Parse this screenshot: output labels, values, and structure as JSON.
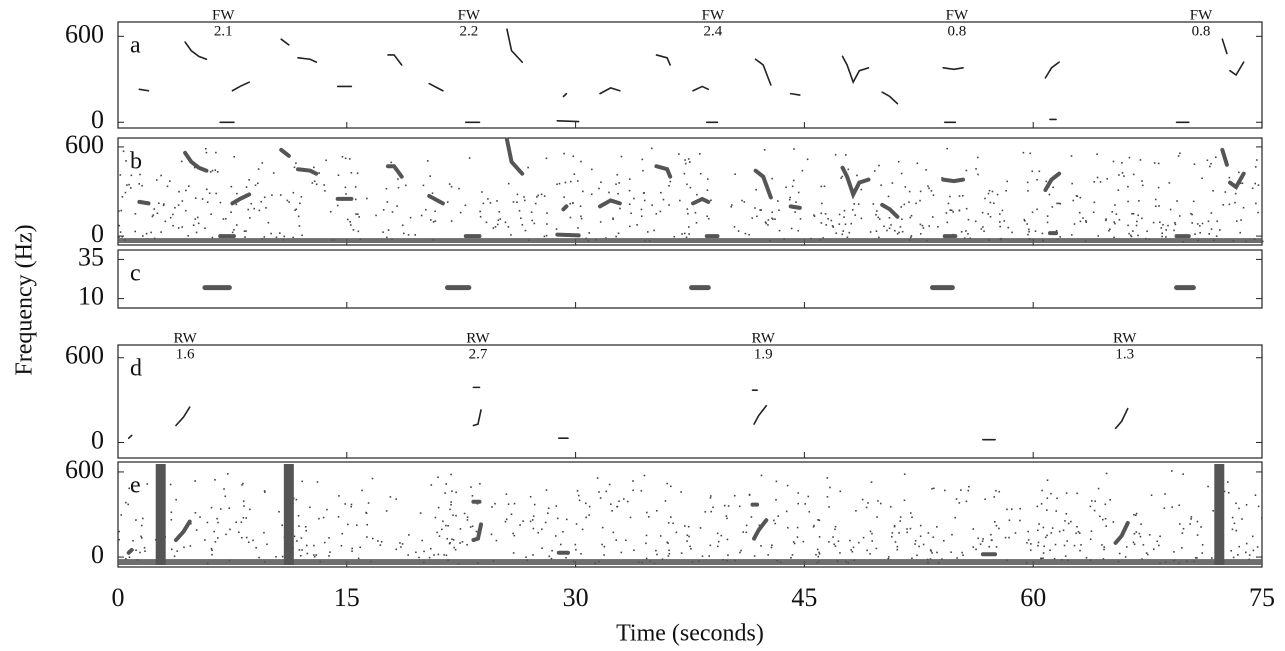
{
  "chart_data": [
    {
      "type": "line",
      "label": "a",
      "ylim": [
        -40,
        700
      ],
      "yticks": [
        0,
        600
      ],
      "color": "#222",
      "annotations": [
        {
          "x": 6.9,
          "text": "FW",
          "value": 2.1
        },
        {
          "x": 23,
          "text": "FW",
          "value": 2.2
        },
        {
          "x": 39,
          "text": "FW",
          "value": 2.4
        },
        {
          "x": 55,
          "text": "FW",
          "value": 0.8
        },
        {
          "x": 71,
          "text": "FW",
          "value": 0.8
        }
      ],
      "series": [
        {
          "x": [
            4.4,
            4.8,
            5.3,
            5.8
          ],
          "values": [
            560,
            500,
            460,
            440
          ]
        },
        {
          "x": [
            1.4,
            2.0
          ],
          "values": [
            230,
            220
          ]
        },
        {
          "x": [
            6.7,
            7.6
          ],
          "values": [
            0,
            0
          ]
        },
        {
          "x": [
            7.5,
            8.0,
            8.6
          ],
          "values": [
            220,
            250,
            280
          ]
        },
        {
          "x": [
            10.7,
            11.2
          ],
          "values": [
            580,
            540
          ]
        },
        {
          "x": [
            11.8,
            12.6,
            13.0
          ],
          "values": [
            450,
            440,
            420
          ]
        },
        {
          "x": [
            14.4,
            15.3
          ],
          "values": [
            250,
            250
          ]
        },
        {
          "x": [
            17.7,
            18.1,
            18.6
          ],
          "values": [
            470,
            470,
            400
          ]
        },
        {
          "x": [
            20.4,
            21.3
          ],
          "values": [
            270,
            220
          ]
        },
        {
          "x": [
            22.8,
            23.7
          ],
          "values": [
            0,
            0
          ]
        },
        {
          "x": [
            25.5,
            25.8,
            26.5
          ],
          "values": [
            650,
            500,
            420
          ]
        },
        {
          "x": [
            29.2,
            29.4
          ],
          "values": [
            180,
            200
          ]
        },
        {
          "x": [
            28.8,
            30.2
          ],
          "values": [
            10,
            5
          ]
        },
        {
          "x": [
            31.6,
            32.3,
            32.9
          ],
          "values": [
            200,
            240,
            220
          ]
        },
        {
          "x": [
            35.3,
            36.0,
            36.2
          ],
          "values": [
            470,
            450,
            400
          ]
        },
        {
          "x": [
            37.7,
            38.3,
            38.7
          ],
          "values": [
            220,
            250,
            230
          ]
        },
        {
          "x": [
            38.6,
            39.3
          ],
          "values": [
            0,
            0
          ]
        },
        {
          "x": [
            41.8,
            42.3,
            42.8
          ],
          "values": [
            440,
            400,
            260
          ]
        },
        {
          "x": [
            44.1,
            44.7
          ],
          "values": [
            200,
            190
          ]
        },
        {
          "x": [
            47.5,
            47.8,
            48.2,
            48.6,
            49.2
          ],
          "values": [
            460,
            400,
            280,
            360,
            380
          ]
        },
        {
          "x": [
            50.1,
            50.6,
            51.1
          ],
          "values": [
            210,
            180,
            130
          ]
        },
        {
          "x": [
            54.1,
            54.8,
            55.4
          ],
          "values": [
            380,
            370,
            380
          ]
        },
        {
          "x": [
            54.2,
            54.9
          ],
          "values": [
            0,
            0
          ]
        },
        {
          "x": [
            60.8,
            61.2,
            61.7
          ],
          "values": [
            310,
            380,
            420
          ]
        },
        {
          "x": [
            61.1,
            61.5
          ],
          "values": [
            20,
            20
          ]
        },
        {
          "x": [
            69.4,
            70.2
          ],
          "values": [
            0,
            0
          ]
        },
        {
          "x": [
            72.4,
            72.7
          ],
          "values": [
            580,
            480
          ]
        },
        {
          "x": [
            72.9,
            73.3,
            73.8
          ],
          "values": [
            360,
            330,
            420
          ]
        }
      ]
    },
    {
      "type": "spectrogram",
      "label": "b",
      "ylim": [
        -60,
        660
      ],
      "yticks": [
        0,
        600
      ],
      "color": "#555"
    },
    {
      "type": "line",
      "label": "c",
      "ylim": [
        4,
        41
      ],
      "yticks": [
        10,
        35
      ],
      "color": "#555",
      "ylabel": "Frequency (Hz)",
      "series": [
        {
          "x": [
            5.7,
            7.3
          ],
          "values": [
            17,
            17
          ]
        },
        {
          "x": [
            21.6,
            23.0
          ],
          "values": [
            17,
            17
          ]
        },
        {
          "x": [
            37.6,
            38.7
          ],
          "values": [
            17,
            17
          ]
        },
        {
          "x": [
            53.4,
            54.7
          ],
          "values": [
            17,
            17
          ]
        },
        {
          "x": [
            69.4,
            70.5
          ],
          "values": [
            17,
            17
          ]
        }
      ]
    },
    {
      "type": "line",
      "label": "d",
      "ylim": [
        -110,
        690
      ],
      "yticks": [
        0,
        600
      ],
      "color": "#222",
      "annotations": [
        {
          "x": 4.4,
          "text": "RW",
          "value": 1.6
        },
        {
          "x": 23.6,
          "text": "RW",
          "value": 2.7
        },
        {
          "x": 42.3,
          "text": "RW",
          "value": 1.9
        },
        {
          "x": 66,
          "text": "RW",
          "value": 1.3
        }
      ],
      "series": [
        {
          "x": [
            0.7,
            0.9
          ],
          "values": [
            30,
            50
          ]
        },
        {
          "x": [
            3.8,
            4.3,
            4.7
          ],
          "values": [
            120,
            180,
            250
          ]
        },
        {
          "x": [
            23.3,
            23.7
          ],
          "values": [
            390,
            390
          ]
        },
        {
          "x": [
            23.3,
            23.6,
            23.8
          ],
          "values": [
            120,
            130,
            230
          ]
        },
        {
          "x": [
            28.9,
            29.5
          ],
          "values": [
            30,
            30
          ]
        },
        {
          "x": [
            41.6,
            41.9
          ],
          "values": [
            370,
            370
          ]
        },
        {
          "x": [
            41.7,
            42.0,
            42.5
          ],
          "values": [
            130,
            190,
            260
          ]
        },
        {
          "x": [
            56.7,
            57.5
          ],
          "values": [
            20,
            20
          ]
        },
        {
          "x": [
            65.4,
            65.8,
            66.2
          ],
          "values": [
            100,
            150,
            240
          ]
        }
      ]
    },
    {
      "type": "spectrogram",
      "label": "e",
      "ylim": [
        -70,
        670
      ],
      "yticks": [
        0,
        600
      ],
      "color": "#555",
      "bands": [
        2.8,
        11.2,
        72.2
      ],
      "xlim": [
        0,
        75
      ],
      "xticks": [
        0,
        15,
        30,
        45,
        60,
        75
      ],
      "xlabel": "Time (seconds)"
    }
  ]
}
